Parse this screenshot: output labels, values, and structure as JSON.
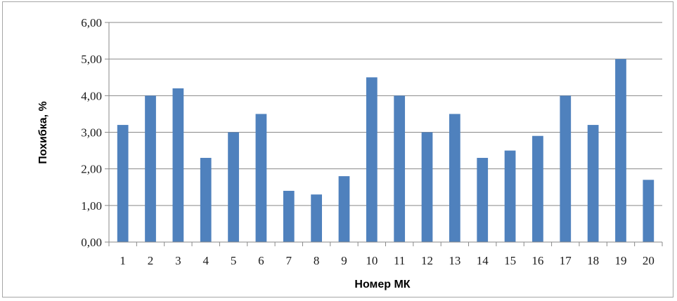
{
  "chart_data": {
    "type": "bar",
    "title": "",
    "xlabel": "Номер МК",
    "ylabel": "Похибка, %",
    "categories": [
      "1",
      "2",
      "3",
      "4",
      "5",
      "6",
      "7",
      "8",
      "9",
      "10",
      "11",
      "12",
      "13",
      "14",
      "15",
      "16",
      "17",
      "18",
      "19",
      "20"
    ],
    "values": [
      3.2,
      4.0,
      4.2,
      2.3,
      3.0,
      3.5,
      1.4,
      1.3,
      1.8,
      4.5,
      4.0,
      3.0,
      3.5,
      2.3,
      2.5,
      2.9,
      4.0,
      3.2,
      5.0,
      1.7
    ],
    "ylim": [
      0,
      6
    ],
    "yticks": [
      "0,00",
      "1,00",
      "2,00",
      "3,00",
      "4,00",
      "5,00",
      "6,00"
    ],
    "grid": true,
    "legend": "none",
    "bar_color": "#4f81bd",
    "grid_color": "#888888"
  }
}
